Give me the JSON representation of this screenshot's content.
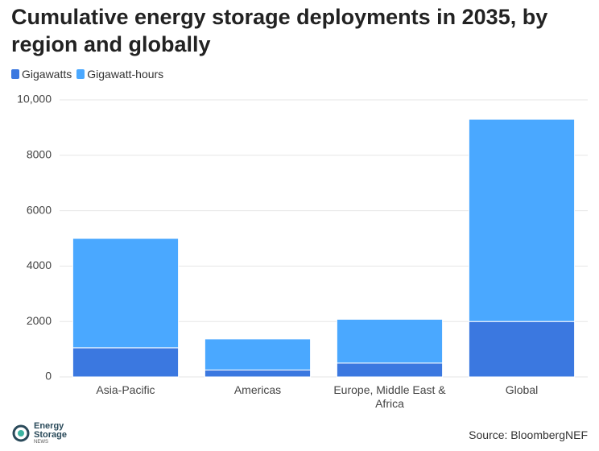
{
  "chart_data": {
    "type": "stacked_bar",
    "title": "Cumulative energy storage deployments in 2035, by region and globally",
    "categories": [
      "Asia-Pacific",
      "Americas",
      "Europe, Middle East & Africa",
      "Global"
    ],
    "series": [
      {
        "name": "Gigawatts",
        "color": "#3b78e0",
        "values": [
          1050,
          250,
          500,
          2000
        ]
      },
      {
        "name": "Gigawatt-hours",
        "color": "#4aa8ff",
        "values": [
          3950,
          1120,
          1580,
          7300
        ]
      }
    ],
    "ylim": [
      0,
      10000
    ],
    "yticks": [
      0,
      2000,
      4000,
      6000,
      8000,
      {
        "value": 10000,
        "label": "10,000"
      }
    ],
    "grid": true,
    "source": "Source: BloombergNEF"
  },
  "logo": {
    "line1": "Energy",
    "line2": "Storage",
    "line3": "NEWS"
  }
}
